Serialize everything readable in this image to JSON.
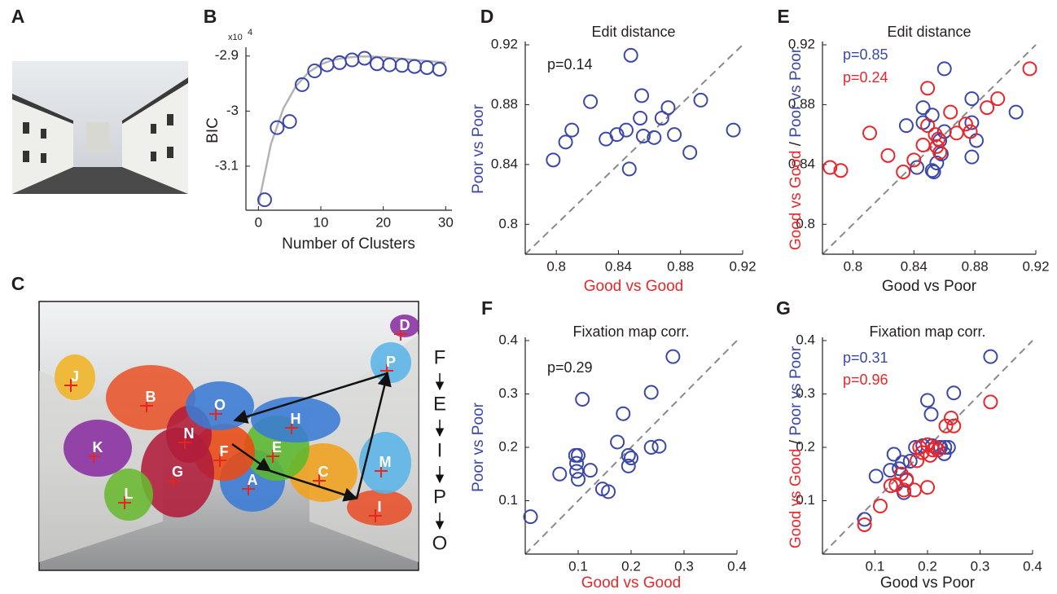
{
  "panel_labels": [
    "A",
    "B",
    "C",
    "D",
    "E",
    "F",
    "G"
  ],
  "cluster_map": {
    "clusters": [
      {
        "label": "A",
        "color": "#3a7bd5"
      },
      {
        "label": "B",
        "color": "#e8542a"
      },
      {
        "label": "C",
        "color": "#f0a21e"
      },
      {
        "label": "D",
        "color": "#8a2fa0"
      },
      {
        "label": "E",
        "color": "#5cb82e"
      },
      {
        "label": "F",
        "color": "#ea4a12"
      },
      {
        "label": "G",
        "color": "#b01c3a"
      },
      {
        "label": "H",
        "color": "#3a7bd5"
      },
      {
        "label": "I",
        "color": "#e8502a"
      },
      {
        "label": "J",
        "color": "#f0b424"
      },
      {
        "label": "K",
        "color": "#8a2fa0"
      },
      {
        "label": "L",
        "color": "#6ab830"
      },
      {
        "label": "M",
        "color": "#5ab4e8"
      },
      {
        "label": "N",
        "color": "#b01c3a"
      },
      {
        "label": "O",
        "color": "#3a7bd5"
      },
      {
        "label": "P",
        "color": "#5ab4e8"
      }
    ],
    "sequence": [
      "F",
      "E",
      "I",
      "P",
      "O"
    ]
  },
  "chart_data": [
    {
      "type": "line",
      "xlabel": [
        {
          "text": "Number of Clusters",
          "color": "#231f20"
        }
      ],
      "ylabel": [
        {
          "text": "BIC",
          "color": "#231f20"
        }
      ],
      "y_exponent_base": "x10",
      "y_exponent": "4",
      "xlim": [
        -2,
        31
      ],
      "ylim": [
        -3.18,
        -2.89
      ],
      "xticks": [
        0,
        10,
        20,
        30
      ],
      "yticks": [
        -3.1,
        -3,
        -2.9
      ],
      "series": [
        {
          "style": "line",
          "color": "#b3b3b3",
          "x": [
            0,
            2,
            4,
            6,
            8,
            10,
            12,
            14,
            16,
            18,
            20,
            22,
            24,
            26,
            28,
            30
          ],
          "values": [
            -3.17,
            -3.06,
            -2.995,
            -2.955,
            -2.93,
            -2.915,
            -2.907,
            -2.903,
            -2.901,
            -2.901,
            -2.902,
            -2.904,
            -2.906,
            -2.908,
            -2.91,
            -2.912
          ]
        },
        {
          "style": "markers",
          "color": "#3b48a8",
          "x": [
            1,
            3,
            5,
            7,
            9,
            11,
            13,
            15,
            17,
            19,
            21,
            23,
            25,
            27,
            29
          ],
          "values": [
            -3.161,
            -3.03,
            -3.019,
            -2.952,
            -2.927,
            -2.916,
            -2.912,
            -2.907,
            -2.904,
            -2.914,
            -2.916,
            -2.917,
            -2.919,
            -2.921,
            -2.924
          ]
        }
      ]
    },
    {
      "type": "scatter",
      "title": "Edit distance",
      "diagonal": true,
      "xlabel": [
        {
          "text": "Good vs Good",
          "color": "#e8262b"
        }
      ],
      "ylabel": [
        {
          "text": "Poor vs Poor",
          "color": "#3b48a8"
        }
      ],
      "annotations": [
        {
          "text": "p=0.14",
          "color": "#231f20"
        }
      ],
      "xlim": [
        0.78,
        0.92
      ],
      "ylim": [
        0.78,
        0.92
      ],
      "xticks": [
        0.8,
        0.84,
        0.88,
        0.92
      ],
      "yticks": [
        0.8,
        0.84,
        0.88,
        0.92
      ],
      "series": [
        {
          "style": "markers",
          "color": "#3b48a8",
          "x": [
            0.798,
            0.806,
            0.81,
            0.822,
            0.832,
            0.839,
            0.845,
            0.847,
            0.848,
            0.854,
            0.855,
            0.856,
            0.863,
            0.868,
            0.872,
            0.876,
            0.893,
            0.886,
            0.914
          ],
          "values": [
            0.843,
            0.855,
            0.863,
            0.882,
            0.857,
            0.86,
            0.863,
            0.837,
            0.913,
            0.871,
            0.886,
            0.859,
            0.858,
            0.871,
            0.878,
            0.86,
            0.883,
            0.848,
            0.863
          ]
        }
      ]
    },
    {
      "type": "scatter",
      "title": "Edit distance",
      "diagonal": true,
      "xlabel": [
        {
          "text": "Good vs Poor",
          "color": "#231f20"
        }
      ],
      "ylabel": [
        {
          "text": "Good vs Good",
          "color": "#e8262b"
        },
        {
          "text": " / ",
          "color": "#231f20"
        },
        {
          "text": "Poor vs Poor",
          "color": "#3b48a8"
        }
      ],
      "annotations": [
        {
          "text": "p=0.85",
          "color": "#3b48a8"
        },
        {
          "text": "p=0.24",
          "color": "#e8262b"
        }
      ],
      "xlim": [
        0.78,
        0.92
      ],
      "ylim": [
        0.78,
        0.92
      ],
      "xticks": [
        0.8,
        0.84,
        0.88,
        0.92
      ],
      "yticks": [
        0.8,
        0.84,
        0.88,
        0.92
      ],
      "series": [
        {
          "style": "markers",
          "color": "#3b48a8",
          "x": [
            0.835,
            0.846,
            0.846,
            0.852,
            0.852,
            0.855,
            0.853,
            0.86,
            0.86,
            0.857,
            0.842,
            0.878,
            0.878,
            0.881,
            0.878,
            0.907,
            0.858
          ],
          "values": [
            0.866,
            0.878,
            0.868,
            0.873,
            0.836,
            0.841,
            0.835,
            0.904,
            0.862,
            0.856,
            0.838,
            0.868,
            0.884,
            0.856,
            0.845,
            0.875,
            0.847
          ]
        },
        {
          "style": "markers",
          "color": "#e8262b",
          "x": [
            0.785,
            0.792,
            0.811,
            0.823,
            0.833,
            0.84,
            0.846,
            0.849,
            0.849,
            0.854,
            0.855,
            0.857,
            0.864,
            0.868,
            0.874,
            0.877,
            0.888,
            0.895,
            0.916,
            0.856
          ],
          "values": [
            0.838,
            0.836,
            0.861,
            0.846,
            0.835,
            0.843,
            0.853,
            0.891,
            0.866,
            0.86,
            0.852,
            0.848,
            0.875,
            0.861,
            0.867,
            0.862,
            0.878,
            0.884,
            0.904,
            0.857
          ]
        }
      ]
    },
    {
      "type": "scatter",
      "title": "Fixation map corr.",
      "diagonal": true,
      "xlabel": [
        {
          "text": "Good vs Good",
          "color": "#e8262b"
        }
      ],
      "ylabel": [
        {
          "text": "Poor vs Poor",
          "color": "#3b48a8"
        }
      ],
      "annotations": [
        {
          "text": "p=0.29",
          "color": "#231f20"
        }
      ],
      "xlim": [
        0,
        0.4
      ],
      "ylim": [
        0,
        0.4
      ],
      "xticks": [
        0.1,
        0.2,
        0.3,
        0.4
      ],
      "yticks": [
        0.1,
        0.2,
        0.3,
        0.4
      ],
      "series": [
        {
          "style": "markers",
          "color": "#3b48a8",
          "x": [
            0.01,
            0.065,
            0.095,
            0.097,
            0.097,
            0.1,
            0.108,
            0.1,
            0.123,
            0.146,
            0.157,
            0.174,
            0.185,
            0.195,
            0.195,
            0.2,
            0.238,
            0.238,
            0.253,
            0.279
          ],
          "values": [
            0.07,
            0.15,
            0.185,
            0.155,
            0.17,
            0.14,
            0.29,
            0.185,
            0.157,
            0.122,
            0.117,
            0.21,
            0.263,
            0.185,
            0.165,
            0.18,
            0.303,
            0.2,
            0.202,
            0.37
          ]
        }
      ]
    },
    {
      "type": "scatter",
      "title": "Fixation map corr.",
      "diagonal": true,
      "xlabel": [
        {
          "text": "Good vs Poor",
          "color": "#231f20"
        }
      ],
      "ylabel": [
        {
          "text": "Good vs Good",
          "color": "#e8262b"
        },
        {
          "text": " / ",
          "color": "#231f20"
        },
        {
          "text": "Poor vs Poor",
          "color": "#3b48a8"
        }
      ],
      "annotations": [
        {
          "text": "p=0.31",
          "color": "#3b48a8"
        },
        {
          "text": "p=0.96",
          "color": "#e8262b"
        }
      ],
      "xlim": [
        0,
        0.4
      ],
      "ylim": [
        0,
        0.4
      ],
      "xticks": [
        0.1,
        0.2,
        0.3,
        0.4
      ],
      "yticks": [
        0.1,
        0.2,
        0.3,
        0.4
      ],
      "series": [
        {
          "style": "markers",
          "color": "#3b48a8",
          "x": [
            0.08,
            0.102,
            0.129,
            0.136,
            0.146,
            0.152,
            0.16,
            0.167,
            0.177,
            0.191,
            0.209,
            0.225,
            0.233,
            0.2,
            0.207,
            0.223,
            0.24,
            0.232,
            0.155,
            0.25,
            0.32
          ],
          "values": [
            0.065,
            0.146,
            0.157,
            0.187,
            0.16,
            0.172,
            0.138,
            0.174,
            0.2,
            0.203,
            0.203,
            0.2,
            0.2,
            0.288,
            0.262,
            0.2,
            0.2,
            0.188,
            0.115,
            0.302,
            0.37
          ]
        },
        {
          "style": "markers",
          "color": "#e8262b",
          "x": [
            0.08,
            0.11,
            0.13,
            0.14,
            0.15,
            0.155,
            0.16,
            0.175,
            0.18,
            0.185,
            0.19,
            0.2,
            0.205,
            0.21,
            0.215,
            0.22,
            0.235,
            0.245,
            0.25,
            0.32,
            0.2
          ],
          "values": [
            0.055,
            0.09,
            0.128,
            0.13,
            0.15,
            0.12,
            0.14,
            0.12,
            0.175,
            0.2,
            0.19,
            0.205,
            0.185,
            0.195,
            0.2,
            0.195,
            0.24,
            0.255,
            0.24,
            0.285,
            0.125
          ]
        }
      ]
    }
  ]
}
